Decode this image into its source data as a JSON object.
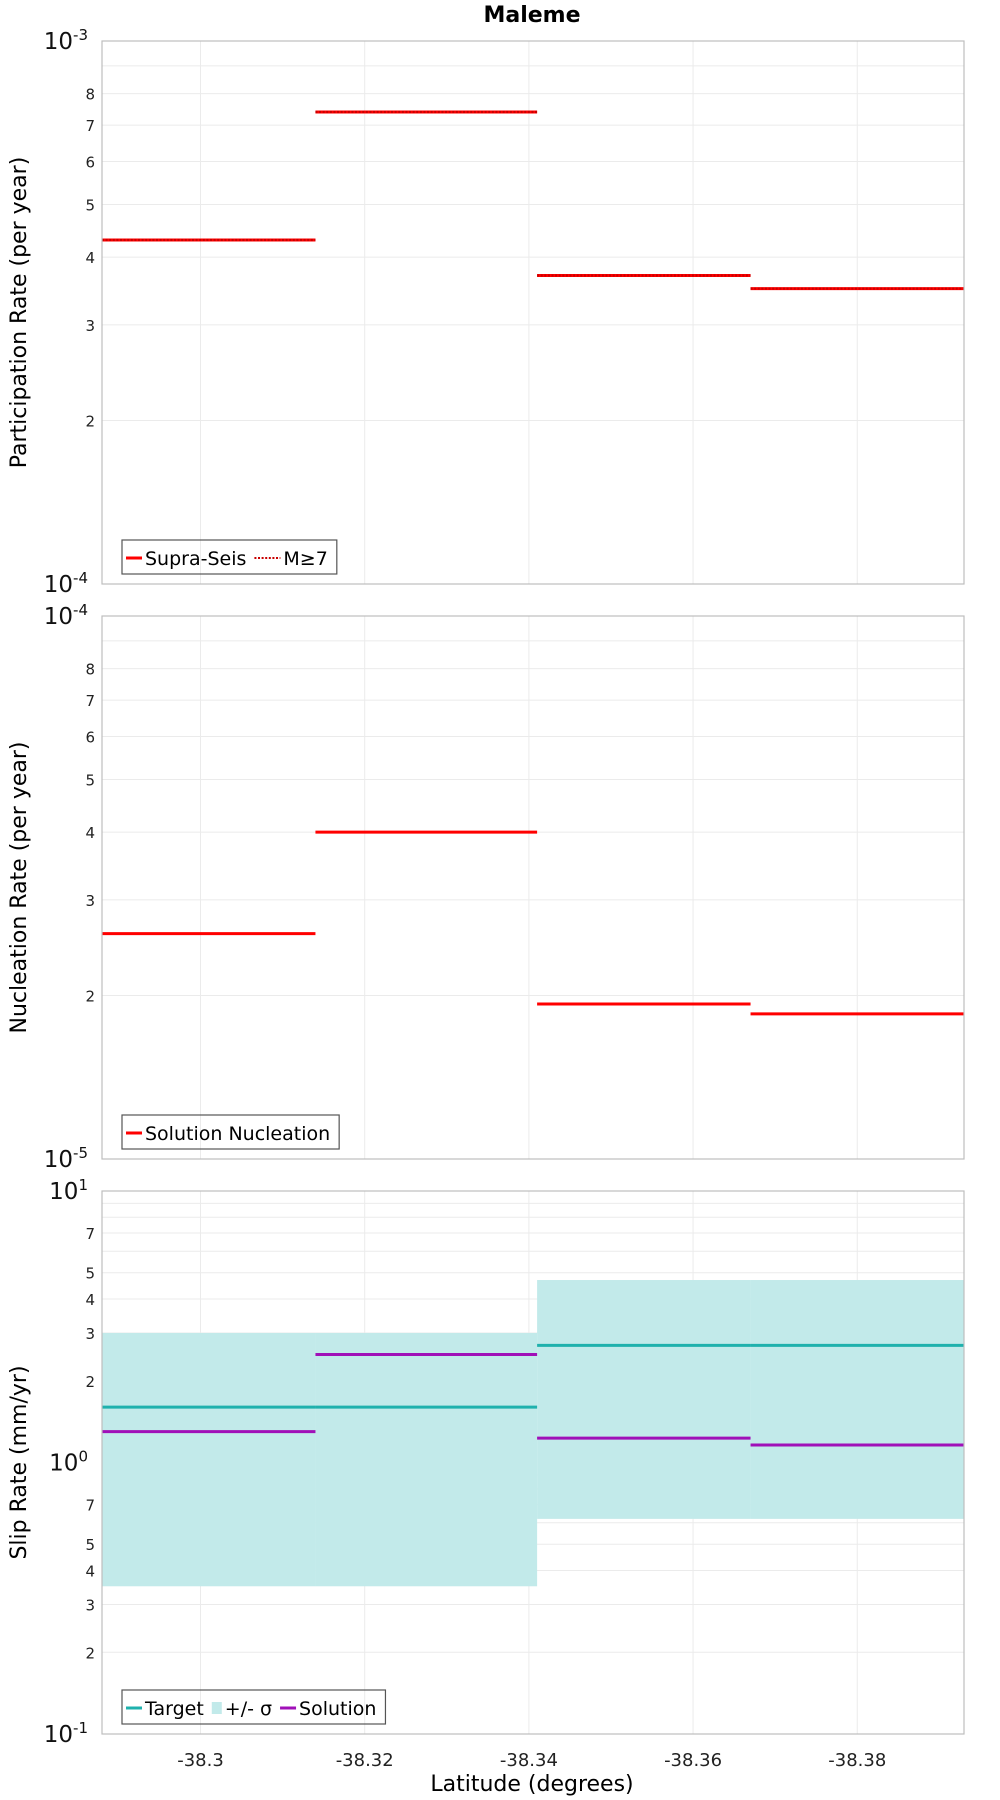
{
  "title": "Maleme",
  "xlabel": "Latitude (degrees)",
  "x_ticks": [
    "-38.3",
    "-38.32",
    "-38.34",
    "-38.36",
    "-38.38"
  ],
  "chart_data": [
    {
      "type": "line",
      "title": "Maleme",
      "ylabel": "Participation Rate (per year)",
      "xlabel": "",
      "yscale": "log",
      "xlim": [
        -38.288,
        -38.393
      ],
      "ylim": [
        0.0001,
        0.001
      ],
      "grid": true,
      "legend_position": "bottom-left",
      "x_bins": [
        [
          -38.288,
          -38.314
        ],
        [
          -38.314,
          -38.341
        ],
        [
          -38.341,
          -38.367
        ],
        [
          -38.367,
          -38.393
        ]
      ],
      "series": [
        {
          "name": "Supra-Seis",
          "style": "solid",
          "color": "#ff0000",
          "values": [
            0.00043,
            0.00074,
            0.00037,
            0.00035
          ]
        },
        {
          "name": "M≥7",
          "style": "dotted",
          "color": "#ff0000",
          "values": [
            0.00043,
            0.00074,
            0.00037,
            0.00035
          ]
        }
      ]
    },
    {
      "type": "line",
      "ylabel": "Nucleation Rate (per year)",
      "xlabel": "",
      "yscale": "log",
      "xlim": [
        -38.288,
        -38.393
      ],
      "ylim": [
        1e-05,
        0.0001
      ],
      "grid": true,
      "legend_position": "bottom-left",
      "x_bins": [
        [
          -38.288,
          -38.314
        ],
        [
          -38.314,
          -38.341
        ],
        [
          -38.341,
          -38.367
        ],
        [
          -38.367,
          -38.393
        ]
      ],
      "series": [
        {
          "name": "Solution Nucleation",
          "style": "solid",
          "color": "#ff0000",
          "values": [
            2.6e-05,
            4e-05,
            1.93e-05,
            1.85e-05
          ]
        }
      ]
    },
    {
      "type": "area",
      "ylabel": "Slip Rate (mm/yr)",
      "xlabel": "Latitude (degrees)",
      "yscale": "log",
      "xlim": [
        -38.288,
        -38.393
      ],
      "ylim": [
        0.1,
        10
      ],
      "grid": true,
      "legend_position": "bottom-left",
      "x_bins": [
        [
          -38.288,
          -38.314
        ],
        [
          -38.314,
          -38.341
        ],
        [
          -38.341,
          -38.367
        ],
        [
          -38.367,
          -38.393
        ]
      ],
      "band": {
        "name": "+/- σ",
        "color": "#c2eaea",
        "lower": [
          0.35,
          0.35,
          0.62,
          0.62
        ],
        "upper": [
          3.0,
          3.0,
          4.7,
          4.7
        ]
      },
      "series": [
        {
          "name": "Target",
          "style": "solid",
          "color": "#1fb1ad",
          "values": [
            1.6,
            1.6,
            2.7,
            2.7
          ]
        },
        {
          "name": "Solution",
          "style": "solid",
          "color": "#a010b8",
          "values": [
            1.3,
            2.5,
            1.23,
            1.16
          ]
        }
      ]
    }
  ]
}
